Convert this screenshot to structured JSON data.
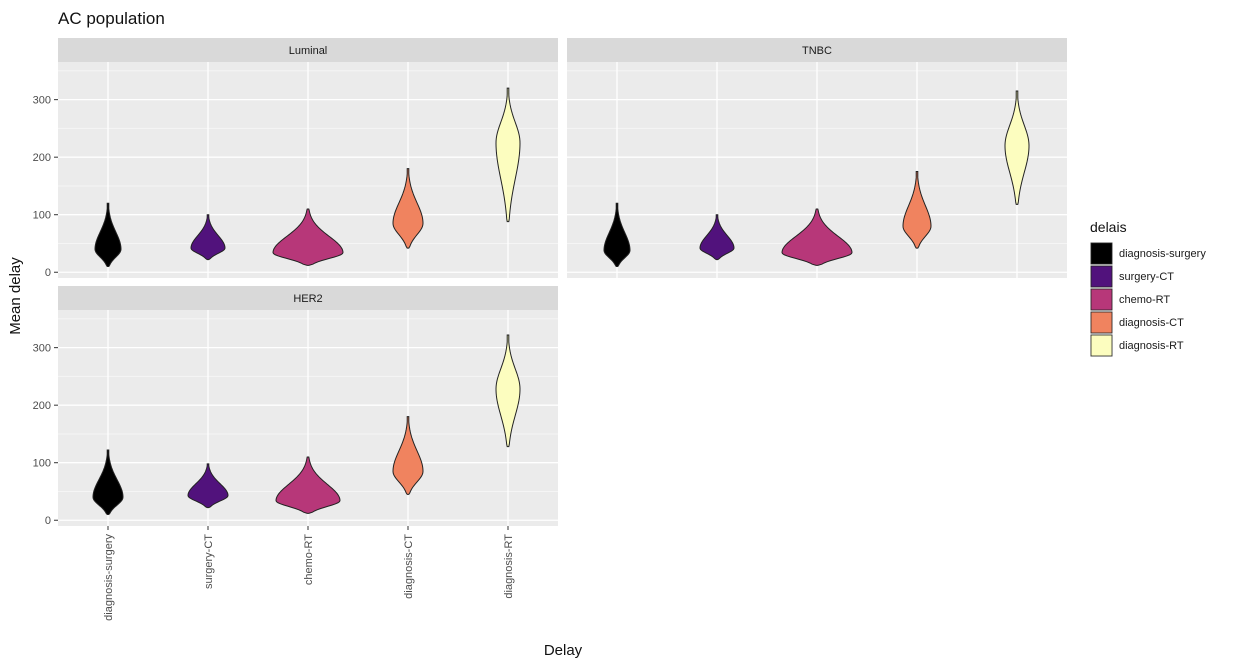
{
  "chart_data": {
    "type": "violin",
    "title": "AC population",
    "xlabel": "Delay",
    "ylabel": "Mean delay",
    "ylim": [
      -10,
      355
    ],
    "y_ticks": [
      0,
      100,
      200,
      300
    ],
    "categories": [
      "diagnosis-surgery",
      "surgery-CT",
      "chemo-RT",
      "diagnosis-CT",
      "diagnosis-RT"
    ],
    "grid": true,
    "legend": {
      "title": "delais",
      "position": "right",
      "entries": [
        "diagnosis-surgery",
        "surgery-CT",
        "chemo-RT",
        "diagnosis-CT",
        "diagnosis-RT"
      ]
    },
    "colors": {
      "diagnosis-surgery": "#000000",
      "surgery-CT": "#51127C",
      "chemo-RT": "#B73779",
      "diagnosis-CT": "#F0835F",
      "diagnosis-RT": "#FCFDBF",
      "panel_bg": "#EBEBEB",
      "strip_bg": "#D9D9D9"
    },
    "facets": [
      {
        "name": "Luminal",
        "violins": [
          {
            "category": "diagnosis-surgery",
            "min": 10,
            "max": 120,
            "mode": 40,
            "max_half_width": 0.13
          },
          {
            "category": "surgery-CT",
            "min": 22,
            "max": 100,
            "mode": 42,
            "max_half_width": 0.17
          },
          {
            "category": "chemo-RT",
            "min": 12,
            "max": 110,
            "mode": 34,
            "max_half_width": 0.35
          },
          {
            "category": "diagnosis-CT",
            "min": 42,
            "max": 180,
            "mode": 85,
            "max_half_width": 0.15
          },
          {
            "category": "diagnosis-RT",
            "min": 88,
            "max": 320,
            "mode": 225,
            "max_half_width": 0.12
          }
        ]
      },
      {
        "name": "TNBC",
        "violins": [
          {
            "category": "diagnosis-surgery",
            "min": 10,
            "max": 120,
            "mode": 38,
            "max_half_width": 0.13
          },
          {
            "category": "surgery-CT",
            "min": 22,
            "max": 100,
            "mode": 42,
            "max_half_width": 0.17
          },
          {
            "category": "chemo-RT",
            "min": 12,
            "max": 110,
            "mode": 34,
            "max_half_width": 0.35
          },
          {
            "category": "diagnosis-CT",
            "min": 42,
            "max": 175,
            "mode": 80,
            "max_half_width": 0.14
          },
          {
            "category": "diagnosis-RT",
            "min": 118,
            "max": 315,
            "mode": 220,
            "max_half_width": 0.12
          }
        ]
      },
      {
        "name": "HER2",
        "violins": [
          {
            "category": "diagnosis-surgery",
            "min": 10,
            "max": 122,
            "mode": 40,
            "max_half_width": 0.15
          },
          {
            "category": "surgery-CT",
            "min": 22,
            "max": 98,
            "mode": 43,
            "max_half_width": 0.2
          },
          {
            "category": "chemo-RT",
            "min": 12,
            "max": 110,
            "mode": 34,
            "max_half_width": 0.32
          },
          {
            "category": "diagnosis-CT",
            "min": 45,
            "max": 180,
            "mode": 85,
            "max_half_width": 0.15
          },
          {
            "category": "diagnosis-RT",
            "min": 128,
            "max": 322,
            "mode": 228,
            "max_half_width": 0.12
          }
        ]
      }
    ]
  }
}
